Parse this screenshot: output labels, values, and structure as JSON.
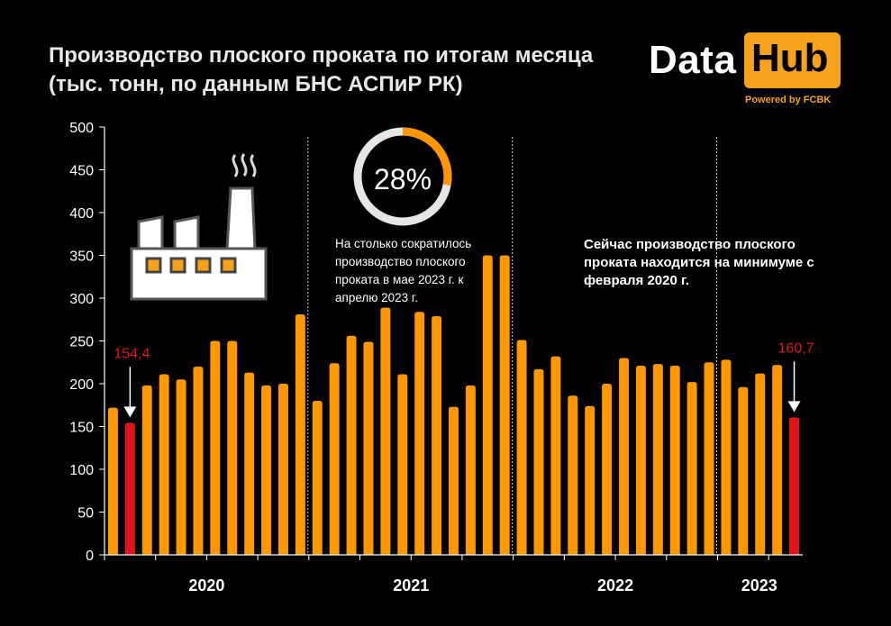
{
  "header": {
    "title_line1": "Производство плоского проката по итогам месяца",
    "title_line2": "(тыс. тонн, по данным БНС АСПиР РК)"
  },
  "logo": {
    "word1": "Data",
    "word2": "Hub",
    "tagline": "Powered by FCBK",
    "accent_color": "#f7a21b"
  },
  "annotations": {
    "donut_value": "28%",
    "donut_fraction": 0.28,
    "left_text": "На столько сократилось производство плоского проката в мае 2023 г. к апрелю 2023 г.",
    "right_text": "Сейчас производство плоского проката находится на минимуме с февраля 2020 г."
  },
  "icons": {
    "factory": "factory-icon"
  },
  "chart_data": {
    "type": "bar",
    "ylim": [
      0,
      500
    ],
    "yticks": [
      "0",
      "50",
      "100",
      "150",
      "200",
      "250",
      "300",
      "350",
      "400",
      "450",
      "500"
    ],
    "year_labels": [
      "2020",
      "2021",
      "2022",
      "2023"
    ],
    "values": [
      172,
      154.4,
      198,
      211,
      205,
      220,
      250,
      250,
      213,
      198,
      200,
      281,
      180,
      224,
      256,
      249,
      289,
      211,
      284,
      279,
      173,
      198,
      350,
      350,
      251,
      217,
      232,
      186,
      174,
      200,
      230,
      221,
      223,
      221,
      202,
      225,
      228,
      196,
      212,
      222,
      160.7
    ],
    "highlight_labels": [
      {
        "index": 1,
        "label": "154,4"
      },
      {
        "index": 40,
        "label": "160,7"
      }
    ],
    "colors": {
      "bar": "#ff9800",
      "highlight": "#e0141b",
      "highlight_label": "#e0141b",
      "axis": "#ffffff",
      "separator": "#cfcfcf"
    }
  }
}
